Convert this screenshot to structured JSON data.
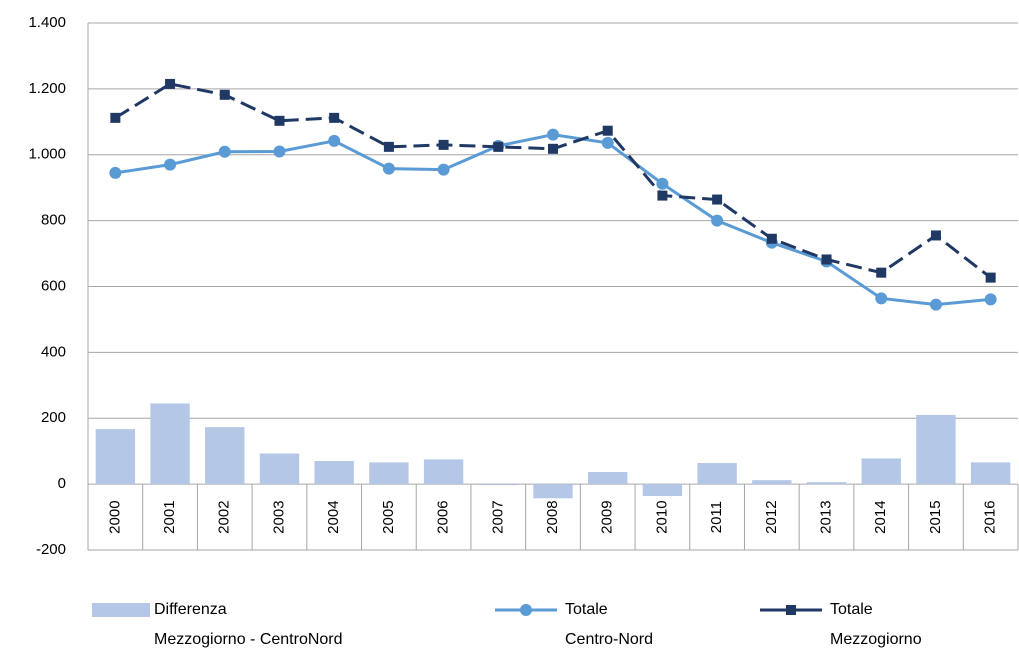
{
  "chart_data": {
    "type": "combo",
    "categories": [
      "2000",
      "2001",
      "2002",
      "2003",
      "2004",
      "2005",
      "2006",
      "2007",
      "2008",
      "2009",
      "2010",
      "2011",
      "2012",
      "2013",
      "2014",
      "2015",
      "2016"
    ],
    "series": [
      {
        "name": "Differenza\nMezzogiorno - CentroNord",
        "type": "bar",
        "color": "#b4c7e7",
        "values": [
          167,
          245,
          173,
          93,
          70,
          66,
          75,
          -3,
          -43,
          37,
          -36,
          64,
          12,
          6,
          78,
          210,
          66
        ]
      },
      {
        "name": "Totale\nCentro-Nord",
        "type": "line",
        "marker": "circle",
        "dashed": false,
        "color": "#5b9bd5",
        "values": [
          945,
          970,
          1009,
          1010,
          1042,
          958,
          955,
          1027,
          1061,
          1036,
          912,
          800,
          733,
          676,
          564,
          545,
          561
        ]
      },
      {
        "name": "Totale\nMezzogiorno",
        "type": "line",
        "marker": "square",
        "dashed": true,
        "color": "#1f3864",
        "values": [
          1112,
          1215,
          1182,
          1103,
          1112,
          1024,
          1030,
          1024,
          1018,
          1073,
          876,
          864,
          745,
          682,
          642,
          755,
          627
        ]
      }
    ],
    "ylim": [
      -200,
      1400
    ],
    "yticks": [
      -200,
      0,
      200,
      400,
      600,
      800,
      {
        "value": 1000,
        "label": "1.000"
      },
      {
        "value": 1200,
        "label": "1.200"
      },
      {
        "value": 1400,
        "label": "1.400"
      }
    ],
    "grid": true,
    "legend": "bottom"
  }
}
